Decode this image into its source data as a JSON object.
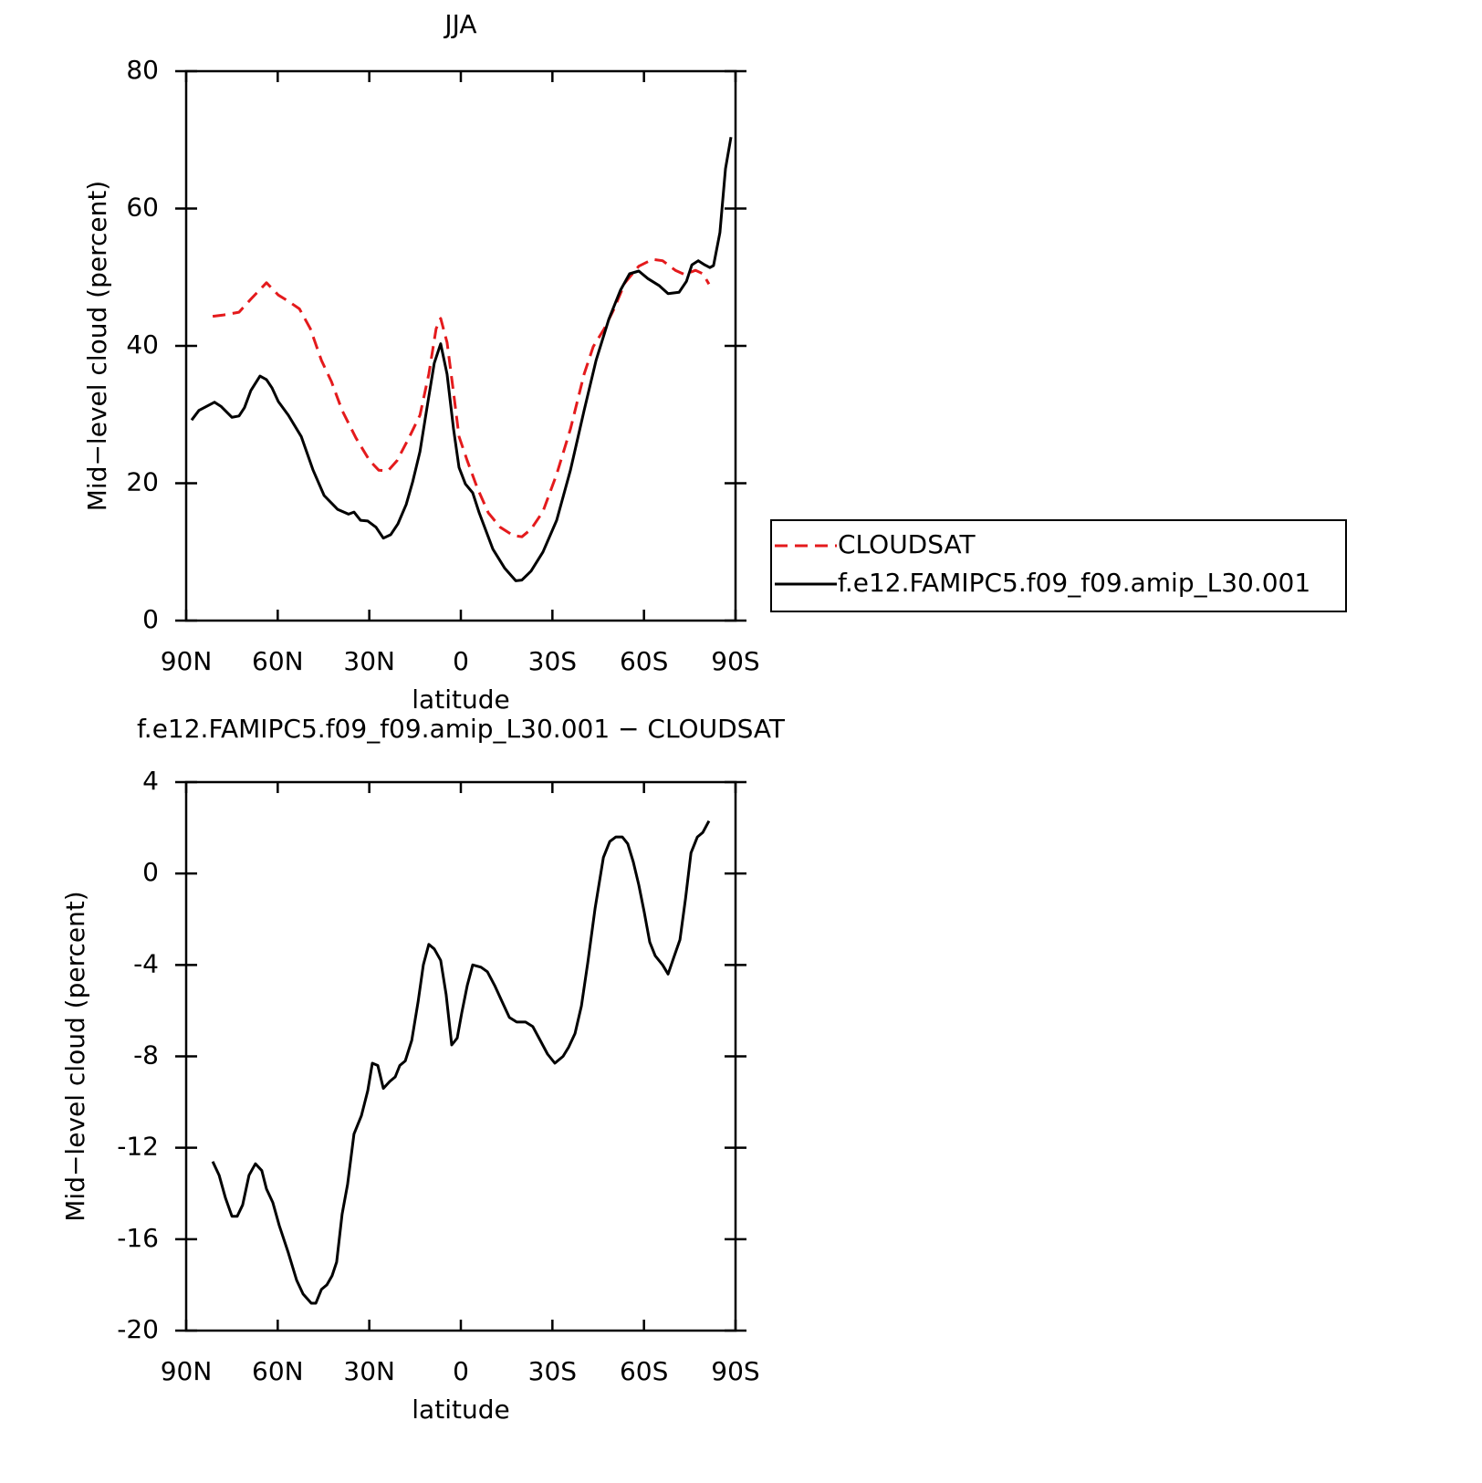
{
  "chart_data": [
    {
      "type": "line",
      "title": "JJA",
      "x_label": "latitude",
      "y_label": "Mid−level cloud (percent)",
      "xlim": [
        90,
        -90
      ],
      "xticks": [
        {
          "value": 90,
          "label": "90N"
        },
        {
          "value": 60,
          "label": "60N"
        },
        {
          "value": 30,
          "label": "30N"
        },
        {
          "value": 0,
          "label": "0"
        },
        {
          "value": -30,
          "label": "30S"
        },
        {
          "value": -60,
          "label": "60S"
        },
        {
          "value": -90,
          "label": "90S"
        }
      ],
      "ylim": [
        0,
        80
      ],
      "yticks": [
        0,
        20,
        40,
        60,
        80
      ],
      "legend": "right",
      "series": [
        {
          "name": "CLOUDSAT",
          "color": "#e41a1c",
          "line_style": "dashed",
          "x": [
            81.3,
            77.7,
            72.7,
            68.8,
            63.7,
            59.8,
            56.5,
            52.9,
            49.3,
            45.7,
            42.4,
            38.9,
            34.4,
            29.9,
            26.9,
            23.9,
            20.9,
            17.0,
            13.4,
            10.5,
            8.1,
            6.6,
            4.5,
            2.4,
            0.6,
            -2.1,
            -5.4,
            -9.0,
            -12.9,
            -17.1,
            -20.0,
            -23.0,
            -26.9,
            -31.4,
            -35.9,
            -40.4,
            -43.4,
            -47.0,
            -50.0,
            -53.8,
            -58.3,
            -62.8,
            -66.1,
            -70.3,
            -73.3,
            -76.9,
            -79.3,
            -81.3
          ],
          "values": [
            44.3,
            44.5,
            44.9,
            46.8,
            49.2,
            47.4,
            46.5,
            45.4,
            42.5,
            37.9,
            34.8,
            30.6,
            26.6,
            23.3,
            21.9,
            21.8,
            23.3,
            26.6,
            29.9,
            35.9,
            42.5,
            44.0,
            40.5,
            33.2,
            26.8,
            23.3,
            19.3,
            15.7,
            13.6,
            12.4,
            12.2,
            13.3,
            15.9,
            21.3,
            27.9,
            35.9,
            39.9,
            42.5,
            45.2,
            49.2,
            51.6,
            52.6,
            52.4,
            51.0,
            50.4,
            51.0,
            50.5,
            49.0
          ]
        },
        {
          "name": "f.e12.FAMIPC5.f09_f09.amip_L30.001",
          "color": "#000000",
          "line_style": "solid",
          "x": [
            88.2,
            85.8,
            80.7,
            78.6,
            75.0,
            72.7,
            70.9,
            68.8,
            65.8,
            63.7,
            61.9,
            59.8,
            56.5,
            52.3,
            48.4,
            44.8,
            40.4,
            36.8,
            35.0,
            32.9,
            30.5,
            27.8,
            25.4,
            23.0,
            20.6,
            17.9,
            15.8,
            13.4,
            11.1,
            8.7,
            6.6,
            4.5,
            2.4,
            0.6,
            -1.5,
            -3.9,
            -6.0,
            -10.5,
            -14.4,
            -18.0,
            -20.0,
            -23.0,
            -26.9,
            -31.4,
            -35.9,
            -40.4,
            -44.3,
            -48.5,
            -52.3,
            -55.3,
            -58.3,
            -61.3,
            -64.9,
            -67.9,
            -71.5,
            -73.9,
            -75.7,
            -77.8,
            -79.9,
            -81.6,
            -82.8,
            -84.9,
            -86.7,
            -88.5
          ],
          "values": [
            29.2,
            30.6,
            31.8,
            31.2,
            29.6,
            29.8,
            31.0,
            33.5,
            35.6,
            35.1,
            33.9,
            31.9,
            29.9,
            26.8,
            21.9,
            18.2,
            16.2,
            15.5,
            15.8,
            14.6,
            14.5,
            13.6,
            12.0,
            12.5,
            14.1,
            16.9,
            20.2,
            24.6,
            31.0,
            37.5,
            40.3,
            35.9,
            27.9,
            22.3,
            19.9,
            18.6,
            15.7,
            10.4,
            7.6,
            5.8,
            5.9,
            7.2,
            10.0,
            14.6,
            21.9,
            30.6,
            37.9,
            43.9,
            48.1,
            50.5,
            50.9,
            49.8,
            48.8,
            47.6,
            47.8,
            49.4,
            51.8,
            52.4,
            51.8,
            51.4,
            51.7,
            56.5,
            65.8,
            70.4
          ]
        }
      ]
    },
    {
      "type": "line",
      "title": "f.e12.FAMIPC5.f09_f09.amip_L30.001 − CLOUDSAT",
      "x_label": "latitude",
      "y_label": "Mid−level cloud (percent)",
      "xlim": [
        90,
        -90
      ],
      "xticks": [
        {
          "value": 90,
          "label": "90N"
        },
        {
          "value": 60,
          "label": "60N"
        },
        {
          "value": 30,
          "label": "30N"
        },
        {
          "value": 0,
          "label": "0"
        },
        {
          "value": -30,
          "label": "30S"
        },
        {
          "value": -60,
          "label": "60S"
        },
        {
          "value": -90,
          "label": "90S"
        }
      ],
      "ylim": [
        -20,
        4
      ],
      "yticks": [
        -20,
        -16,
        -12,
        -8,
        -4,
        0,
        4
      ],
      "color": "#000000",
      "x": [
        81.3,
        79.2,
        77.1,
        75.0,
        73.3,
        71.5,
        69.4,
        67.3,
        65.2,
        63.7,
        61.6,
        59.5,
        56.5,
        53.8,
        51.7,
        49.0,
        47.5,
        45.7,
        43.9,
        42.2,
        40.7,
        38.9,
        37.1,
        35.0,
        32.6,
        30.5,
        29.0,
        27.2,
        25.4,
        23.3,
        21.5,
        20.0,
        18.2,
        16.1,
        14.0,
        12.3,
        10.5,
        8.7,
        6.6,
        4.8,
        3.0,
        1.2,
        -0.3,
        -2.1,
        -3.9,
        -6.6,
        -8.7,
        -11.1,
        -13.5,
        -15.9,
        -18.3,
        -21.2,
        -23.6,
        -26.0,
        -28.4,
        -30.8,
        -33.5,
        -35.3,
        -37.4,
        -39.5,
        -41.6,
        -44.0,
        -46.7,
        -48.8,
        -50.8,
        -52.9,
        -54.7,
        -56.5,
        -58.3,
        -60.1,
        -61.9,
        -63.7,
        -66.1,
        -67.9,
        -69.7,
        -71.8,
        -73.6,
        -75.4,
        -77.5,
        -79.3,
        -81.3
      ],
      "values": [
        -12.6,
        -13.2,
        -14.2,
        -15.0,
        -15.0,
        -14.5,
        -13.2,
        -12.7,
        -13.0,
        -13.8,
        -14.4,
        -15.4,
        -16.6,
        -17.8,
        -18.4,
        -18.8,
        -18.8,
        -18.2,
        -18.0,
        -17.6,
        -17.0,
        -14.9,
        -13.6,
        -11.4,
        -10.6,
        -9.5,
        -8.3,
        -8.4,
        -9.4,
        -9.1,
        -8.9,
        -8.4,
        -8.2,
        -7.3,
        -5.6,
        -4.0,
        -3.1,
        -3.3,
        -3.8,
        -5.3,
        -7.5,
        -7.2,
        -6.1,
        -4.9,
        -4.0,
        -4.1,
        -4.3,
        -4.9,
        -5.6,
        -6.3,
        -6.5,
        -6.5,
        -6.7,
        -7.3,
        -7.9,
        -8.3,
        -8.0,
        -7.6,
        -7.0,
        -5.8,
        -3.9,
        -1.5,
        0.7,
        1.4,
        1.6,
        1.6,
        1.3,
        0.5,
        -0.5,
        -1.7,
        -3.0,
        -3.6,
        -4.0,
        -4.4,
        -3.7,
        -2.9,
        -1.1,
        0.9,
        1.6,
        1.8,
        2.3
      ]
    }
  ]
}
